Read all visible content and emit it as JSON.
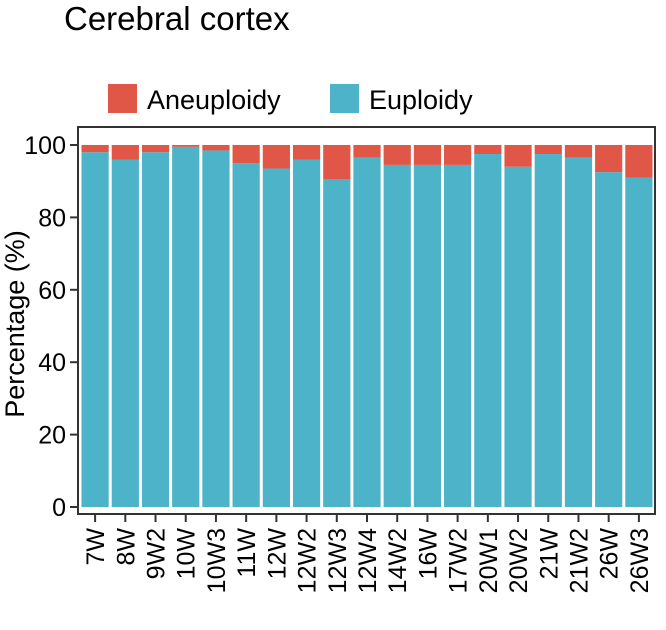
{
  "chart_data": {
    "type": "bar",
    "stacked": true,
    "title": "Cerebral cortex",
    "xlabel": "",
    "ylabel": "Percentage (%)",
    "ylim": [
      0,
      100
    ],
    "yticks": [
      0,
      20,
      40,
      60,
      80,
      100
    ],
    "legend_position": "top",
    "grid": false,
    "categories": [
      "7W",
      "8W",
      "9W2",
      "10W",
      "10W3",
      "11W",
      "12W",
      "12W2",
      "12W3",
      "12W4",
      "14W2",
      "16W",
      "17W2",
      "20W1",
      "20W2",
      "21W",
      "21W2",
      "26W",
      "26W3"
    ],
    "series": [
      {
        "name": "Euploidy",
        "color": "#4cb3c8",
        "values": [
          98,
          96,
          98,
          99.5,
          98.5,
          95,
          93.5,
          96,
          90.5,
          96.5,
          94.5,
          94.5,
          94.5,
          97.5,
          94,
          97.5,
          96.5,
          92.5,
          91
        ]
      },
      {
        "name": "Aneuploidy",
        "color": "#e05647",
        "values": [
          2,
          4,
          2,
          0.5,
          1.5,
          5,
          6.5,
          4,
          9.5,
          3.5,
          5.5,
          5.5,
          5.5,
          2.5,
          6,
          2.5,
          3.5,
          7.5,
          9
        ]
      }
    ]
  }
}
